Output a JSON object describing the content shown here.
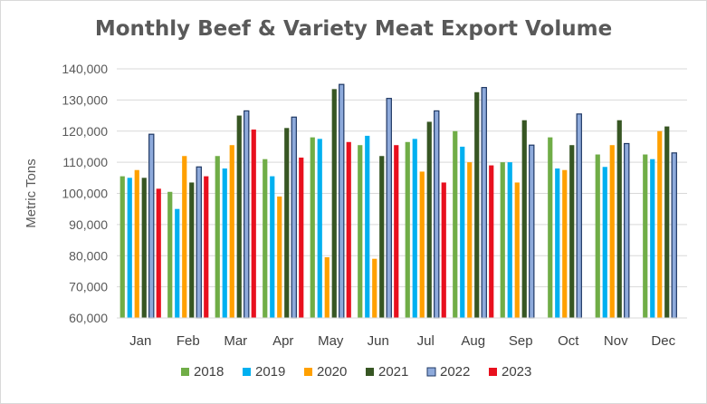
{
  "chart_data": {
    "type": "bar",
    "title": "Monthly Beef & Variety Meat Export Volume",
    "ylabel": "Metric Tons",
    "xlabel": "",
    "ylim": [
      60000,
      140000
    ],
    "yticks": [
      60000,
      70000,
      80000,
      90000,
      100000,
      110000,
      120000,
      130000,
      140000
    ],
    "ytick_labels": [
      "60,000",
      "70,000",
      "80,000",
      "90,000",
      "100,000",
      "110,000",
      "120,000",
      "130,000",
      "140,000"
    ],
    "grid": "horizontal",
    "legend_position": "bottom",
    "categories": [
      "Jan",
      "Feb",
      "Mar",
      "Apr",
      "May",
      "Jun",
      "Jul",
      "Aug",
      "Sep",
      "Oct",
      "Nov",
      "Dec"
    ],
    "series": [
      {
        "name": "2018",
        "color": "#70ad47",
        "values": [
          105500,
          100500,
          112000,
          111000,
          118000,
          115500,
          116500,
          120000,
          110000,
          118000,
          112500,
          112500
        ]
      },
      {
        "name": "2019",
        "color": "#00b0f0",
        "values": [
          105000,
          95000,
          108000,
          105500,
          117500,
          118500,
          117500,
          115000,
          110000,
          108000,
          108500,
          111000
        ]
      },
      {
        "name": "2020",
        "color": "#ffa000",
        "values": [
          107500,
          112000,
          115500,
          99000,
          79500,
          79000,
          107000,
          110000,
          103500,
          107500,
          115500,
          120000
        ]
      },
      {
        "name": "2021",
        "color": "#375623",
        "values": [
          105000,
          103500,
          125000,
          121000,
          133500,
          112000,
          123000,
          132500,
          123500,
          115500,
          123500,
          121500
        ]
      },
      {
        "name": "2022",
        "color": "#8eaadb",
        "values": [
          119000,
          108500,
          126500,
          124500,
          135000,
          130500,
          126500,
          134000,
          115500,
          125500,
          116000,
          113000
        ]
      },
      {
        "name": "2023",
        "color": "#e8101e",
        "values": [
          101500,
          105500,
          120500,
          111500,
          116500,
          115500,
          103500,
          109000,
          null,
          null,
          null,
          null
        ]
      }
    ]
  }
}
